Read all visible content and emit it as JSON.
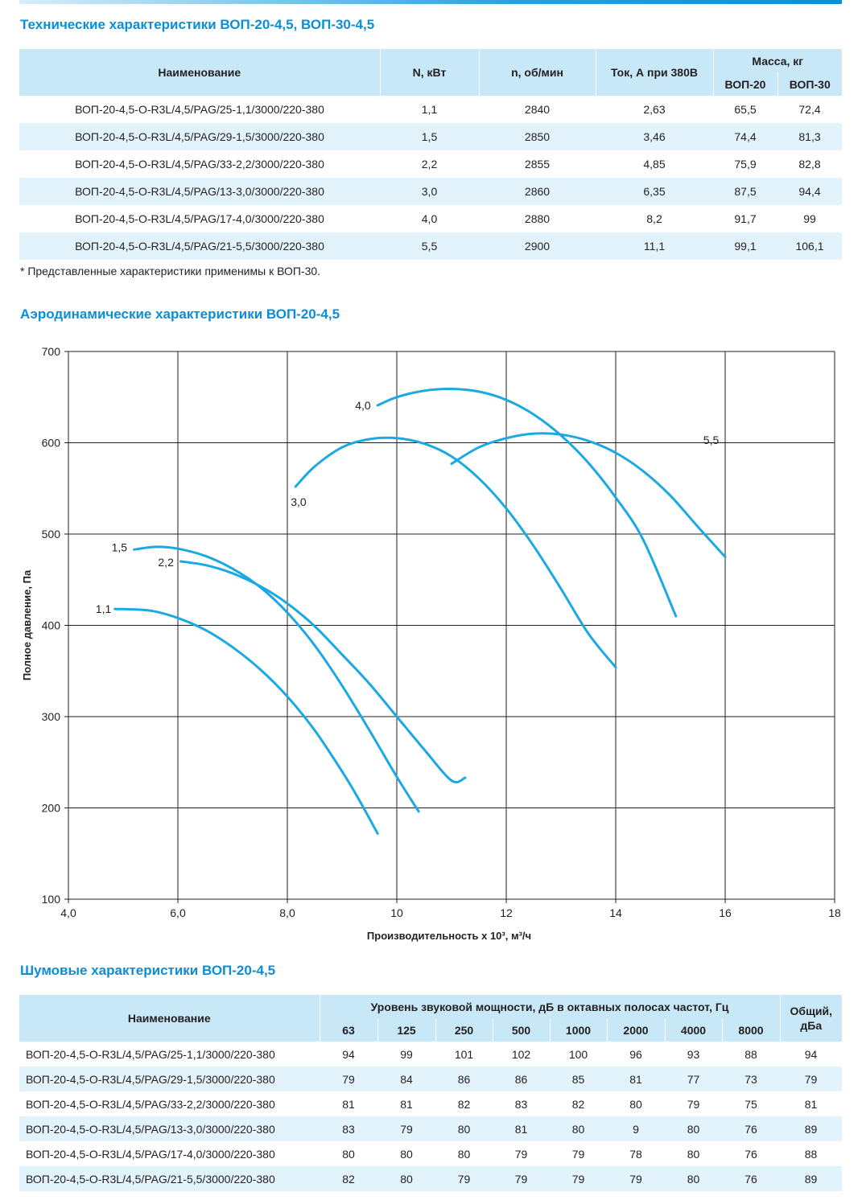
{
  "specs": {
    "title": "Технические характеристики ВОП-20-4,5, ВОП-30-4,5",
    "headers": {
      "name": "Наименование",
      "power": "N, кВт",
      "rpm": "n, об/мин",
      "current": "Ток, А при 380В",
      "mass": "Масса, кг",
      "mass20": "ВОП-20",
      "mass30": "ВОП-30"
    },
    "rows": [
      {
        "name": "ВОП-20-4,5-O-R3L/4,5/PAG/25-1,1/3000/220-380",
        "power": "1,1",
        "rpm": "2840",
        "current": "2,63",
        "mass20": "65,5",
        "mass30": "72,4"
      },
      {
        "name": "ВОП-20-4,5-O-R3L/4,5/PAG/29-1,5/3000/220-380",
        "power": "1,5",
        "rpm": "2850",
        "current": "3,46",
        "mass20": "74,4",
        "mass30": "81,3"
      },
      {
        "name": "ВОП-20-4,5-O-R3L/4,5/PAG/33-2,2/3000/220-380",
        "power": "2,2",
        "rpm": "2855",
        "current": "4,85",
        "mass20": "75,9",
        "mass30": "82,8"
      },
      {
        "name": "ВОП-20-4,5-O-R3L/4,5/PAG/13-3,0/3000/220-380",
        "power": "3,0",
        "rpm": "2860",
        "current": "6,35",
        "mass20": "87,5",
        "mass30": "94,4"
      },
      {
        "name": "ВОП-20-4,5-O-R3L/4,5/PAG/17-4,0/3000/220-380",
        "power": "4,0",
        "rpm": "2880",
        "current": "8,2",
        "mass20": "91,7",
        "mass30": "99"
      },
      {
        "name": "ВОП-20-4,5-O-R3L/4,5/PAG/21-5,5/3000/220-380",
        "power": "5,5",
        "rpm": "2900",
        "current": "11,1",
        "mass20": "99,1",
        "mass30": "106,1"
      }
    ],
    "note": "* Представленные характеристики применимы к ВОП-30."
  },
  "aero": {
    "title": "Аэродинамические характеристики ВОП-20-4,5"
  },
  "chart_data": {
    "type": "line",
    "xlabel": "Производительность х 10³, м³/ч",
    "ylabel": "Полное давление, Па",
    "xlim": [
      4,
      18
    ],
    "ylim": [
      100,
      700
    ],
    "xticks": [
      4,
      6,
      8,
      10,
      12,
      14,
      16,
      18
    ],
    "xtick_labels": [
      "4,0",
      "6,0",
      "8,0",
      "10",
      "12",
      "14",
      "16",
      "18"
    ],
    "yticks": [
      100,
      200,
      300,
      400,
      500,
      600,
      700
    ],
    "ytick_labels": [
      "100",
      "200",
      "300",
      "400",
      "500",
      "600",
      "700"
    ],
    "grid": true,
    "line_color": "#1ba9e1",
    "series": [
      {
        "name": "1,1",
        "points": [
          [
            4.85,
            418
          ],
          [
            5.5,
            416
          ],
          [
            6.0,
            408
          ],
          [
            6.5,
            395
          ],
          [
            7.0,
            376
          ],
          [
            7.5,
            352
          ],
          [
            8.0,
            322
          ],
          [
            8.5,
            285
          ],
          [
            9.0,
            240
          ],
          [
            9.3,
            210
          ],
          [
            9.65,
            172
          ]
        ]
      },
      {
        "name": "1,5",
        "points": [
          [
            5.2,
            483
          ],
          [
            5.6,
            486
          ],
          [
            6.0,
            484
          ],
          [
            6.5,
            476
          ],
          [
            7.0,
            462
          ],
          [
            7.5,
            442
          ],
          [
            8.0,
            414
          ],
          [
            8.5,
            378
          ],
          [
            9.0,
            334
          ],
          [
            9.5,
            285
          ],
          [
            10.0,
            234
          ],
          [
            10.4,
            196
          ]
        ]
      },
      {
        "name": "2,2",
        "points": [
          [
            6.05,
            470
          ],
          [
            6.5,
            466
          ],
          [
            7.0,
            457
          ],
          [
            7.5,
            443
          ],
          [
            8.0,
            424
          ],
          [
            8.5,
            399
          ],
          [
            9.0,
            368
          ],
          [
            9.5,
            336
          ],
          [
            10.0,
            300
          ],
          [
            10.5,
            264
          ],
          [
            11.0,
            230
          ],
          [
            11.25,
            233
          ]
        ]
      },
      {
        "name": "3,0",
        "points": [
          [
            8.15,
            552
          ],
          [
            8.5,
            574
          ],
          [
            9.0,
            595
          ],
          [
            9.5,
            604
          ],
          [
            10.0,
            605
          ],
          [
            10.5,
            599
          ],
          [
            11.0,
            585
          ],
          [
            11.5,
            561
          ],
          [
            12.0,
            528
          ],
          [
            12.5,
            487
          ],
          [
            13.0,
            440
          ],
          [
            13.5,
            391
          ],
          [
            14.0,
            354
          ]
        ]
      },
      {
        "name": "4,0",
        "points": [
          [
            9.65,
            641
          ],
          [
            10.0,
            650
          ],
          [
            10.5,
            657
          ],
          [
            11.0,
            659
          ],
          [
            11.5,
            656
          ],
          [
            12.0,
            647
          ],
          [
            12.5,
            631
          ],
          [
            13.0,
            608
          ],
          [
            13.5,
            578
          ],
          [
            14.0,
            540
          ],
          [
            14.5,
            494
          ],
          [
            15.1,
            410
          ]
        ]
      },
      {
        "name": "5,5",
        "points": [
          [
            11.0,
            577
          ],
          [
            11.5,
            595
          ],
          [
            12.0,
            605
          ],
          [
            12.5,
            610
          ],
          [
            13.0,
            609
          ],
          [
            13.5,
            602
          ],
          [
            14.0,
            589
          ],
          [
            14.5,
            569
          ],
          [
            15.0,
            542
          ],
          [
            15.5,
            508
          ],
          [
            16.0,
            475
          ]
        ]
      }
    ]
  },
  "noise": {
    "title": "Шумовые характеристики ВОП-20-4,5",
    "headers": {
      "name": "Наименование",
      "level": "Уровень звуковой мощности, дБ в октавных полосах частот, Гц",
      "total": "Общий, дБа",
      "freqs": [
        "63",
        "125",
        "250",
        "500",
        "1000",
        "2000",
        "4000",
        "8000"
      ]
    },
    "rows": [
      {
        "name": "ВОП-20-4,5-O-R3L/4,5/PAG/25-1,1/3000/220-380",
        "values": [
          "94",
          "99",
          "101",
          "102",
          "100",
          "96",
          "93",
          "88"
        ],
        "total": "94"
      },
      {
        "name": "ВОП-20-4,5-O-R3L/4,5/PAG/29-1,5/3000/220-380",
        "values": [
          "79",
          "84",
          "86",
          "86",
          "85",
          "81",
          "77",
          "73"
        ],
        "total": "79"
      },
      {
        "name": "ВОП-20-4,5-O-R3L/4,5/PAG/33-2,2/3000/220-380",
        "values": [
          "81",
          "81",
          "82",
          "83",
          "82",
          "80",
          "79",
          "75"
        ],
        "total": "81"
      },
      {
        "name": "ВОП-20-4,5-O-R3L/4,5/PAG/13-3,0/3000/220-380",
        "values": [
          "83",
          "79",
          "80",
          "81",
          "80",
          "9",
          "80",
          "76"
        ],
        "total": "89"
      },
      {
        "name": "ВОП-20-4,5-O-R3L/4,5/PAG/17-4,0/3000/220-380",
        "values": [
          "80",
          "80",
          "80",
          "79",
          "79",
          "78",
          "80",
          "76"
        ],
        "total": "88"
      },
      {
        "name": "ВОП-20-4,5-O-R3L/4,5/PAG/21-5,5/3000/220-380",
        "values": [
          "82",
          "80",
          "79",
          "79",
          "79",
          "79",
          "80",
          "76"
        ],
        "total": "89"
      }
    ]
  }
}
